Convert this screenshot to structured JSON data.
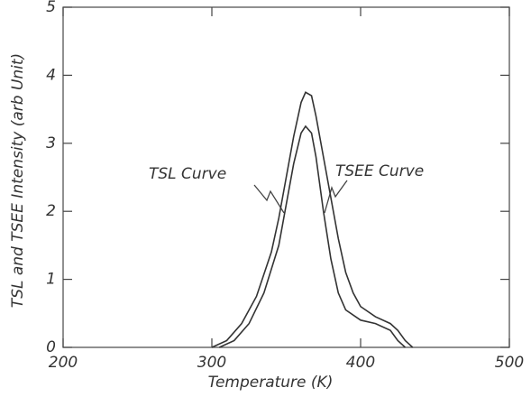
{
  "chart_data": {
    "type": "line",
    "xlabel": "Temperature (K)",
    "ylabel": "TSL and TSEE Intensity (arb Unit)",
    "series": [
      {
        "name": "TSL Curve",
        "color": "#333333",
        "x": [
          300,
          310,
          320,
          330,
          340,
          345,
          350,
          355,
          360,
          363,
          367,
          370,
          375,
          380,
          385,
          390,
          395,
          400,
          410,
          420,
          425,
          430,
          435
        ],
        "values": [
          0,
          0.1,
          0.35,
          0.75,
          1.4,
          1.9,
          2.5,
          3.1,
          3.6,
          3.75,
          3.7,
          3.4,
          2.8,
          2.2,
          1.6,
          1.1,
          0.8,
          0.6,
          0.45,
          0.35,
          0.25,
          0.1,
          0
        ]
      },
      {
        "name": "TSEE Curve",
        "color": "#333333",
        "x": [
          305,
          315,
          325,
          335,
          345,
          350,
          355,
          360,
          363,
          367,
          370,
          375,
          380,
          385,
          390,
          400,
          410,
          420,
          425,
          430
        ],
        "values": [
          0,
          0.1,
          0.35,
          0.8,
          1.5,
          2.1,
          2.7,
          3.15,
          3.25,
          3.15,
          2.8,
          2.0,
          1.3,
          0.8,
          0.55,
          0.4,
          0.35,
          0.25,
          0.1,
          0
        ]
      }
    ],
    "xlim": [
      200,
      500
    ],
    "xticks": [
      200,
      300,
      400,
      500
    ],
    "ylim": [
      0,
      5
    ],
    "yticks": [
      0,
      1,
      2,
      3,
      4,
      5
    ],
    "grid": false
  }
}
